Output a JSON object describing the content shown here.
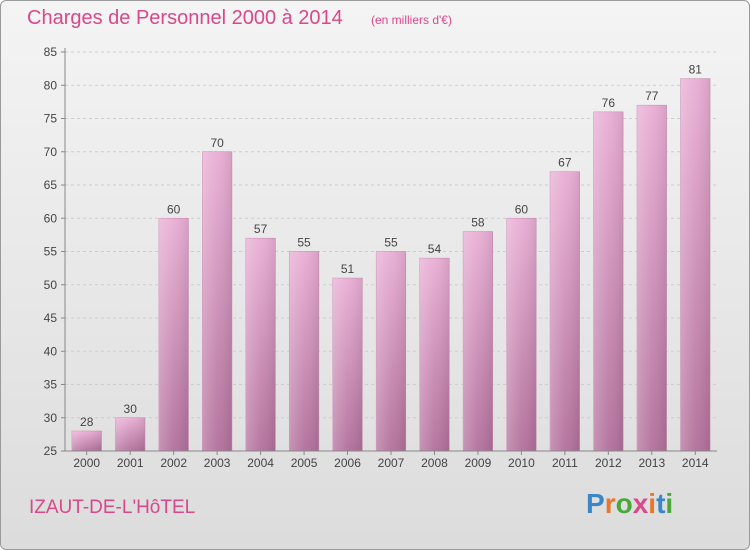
{
  "header": {
    "title": "Charges de Personnel 2000 à 2014",
    "subtitle": "(en milliers d'€)"
  },
  "footer": {
    "commune": "IZAUT-DE-L'HôTEL",
    "logo": "Proxiti"
  },
  "colors": {
    "title": "#d9488a",
    "bar_top": "#e8aad2",
    "bar_bottom": "#b06a98",
    "grid": "#cfcfcf",
    "axis": "#888888",
    "text": "#444444"
  },
  "chart_data": {
    "type": "bar",
    "title": "Charges de Personnel 2000 à 2014",
    "subtitle": "(en milliers d'€)",
    "categories": [
      "2000",
      "2001",
      "2002",
      "2003",
      "2004",
      "2005",
      "2006",
      "2007",
      "2008",
      "2009",
      "2010",
      "2011",
      "2012",
      "2013",
      "2014"
    ],
    "values": [
      28,
      30,
      60,
      70,
      57,
      55,
      51,
      55,
      54,
      58,
      60,
      67,
      76,
      77,
      81
    ],
    "ylim": [
      25,
      85
    ],
    "yticks": [
      25,
      30,
      35,
      40,
      45,
      50,
      55,
      60,
      65,
      70,
      75,
      80,
      85
    ],
    "grid": true,
    "data_labels": true
  }
}
